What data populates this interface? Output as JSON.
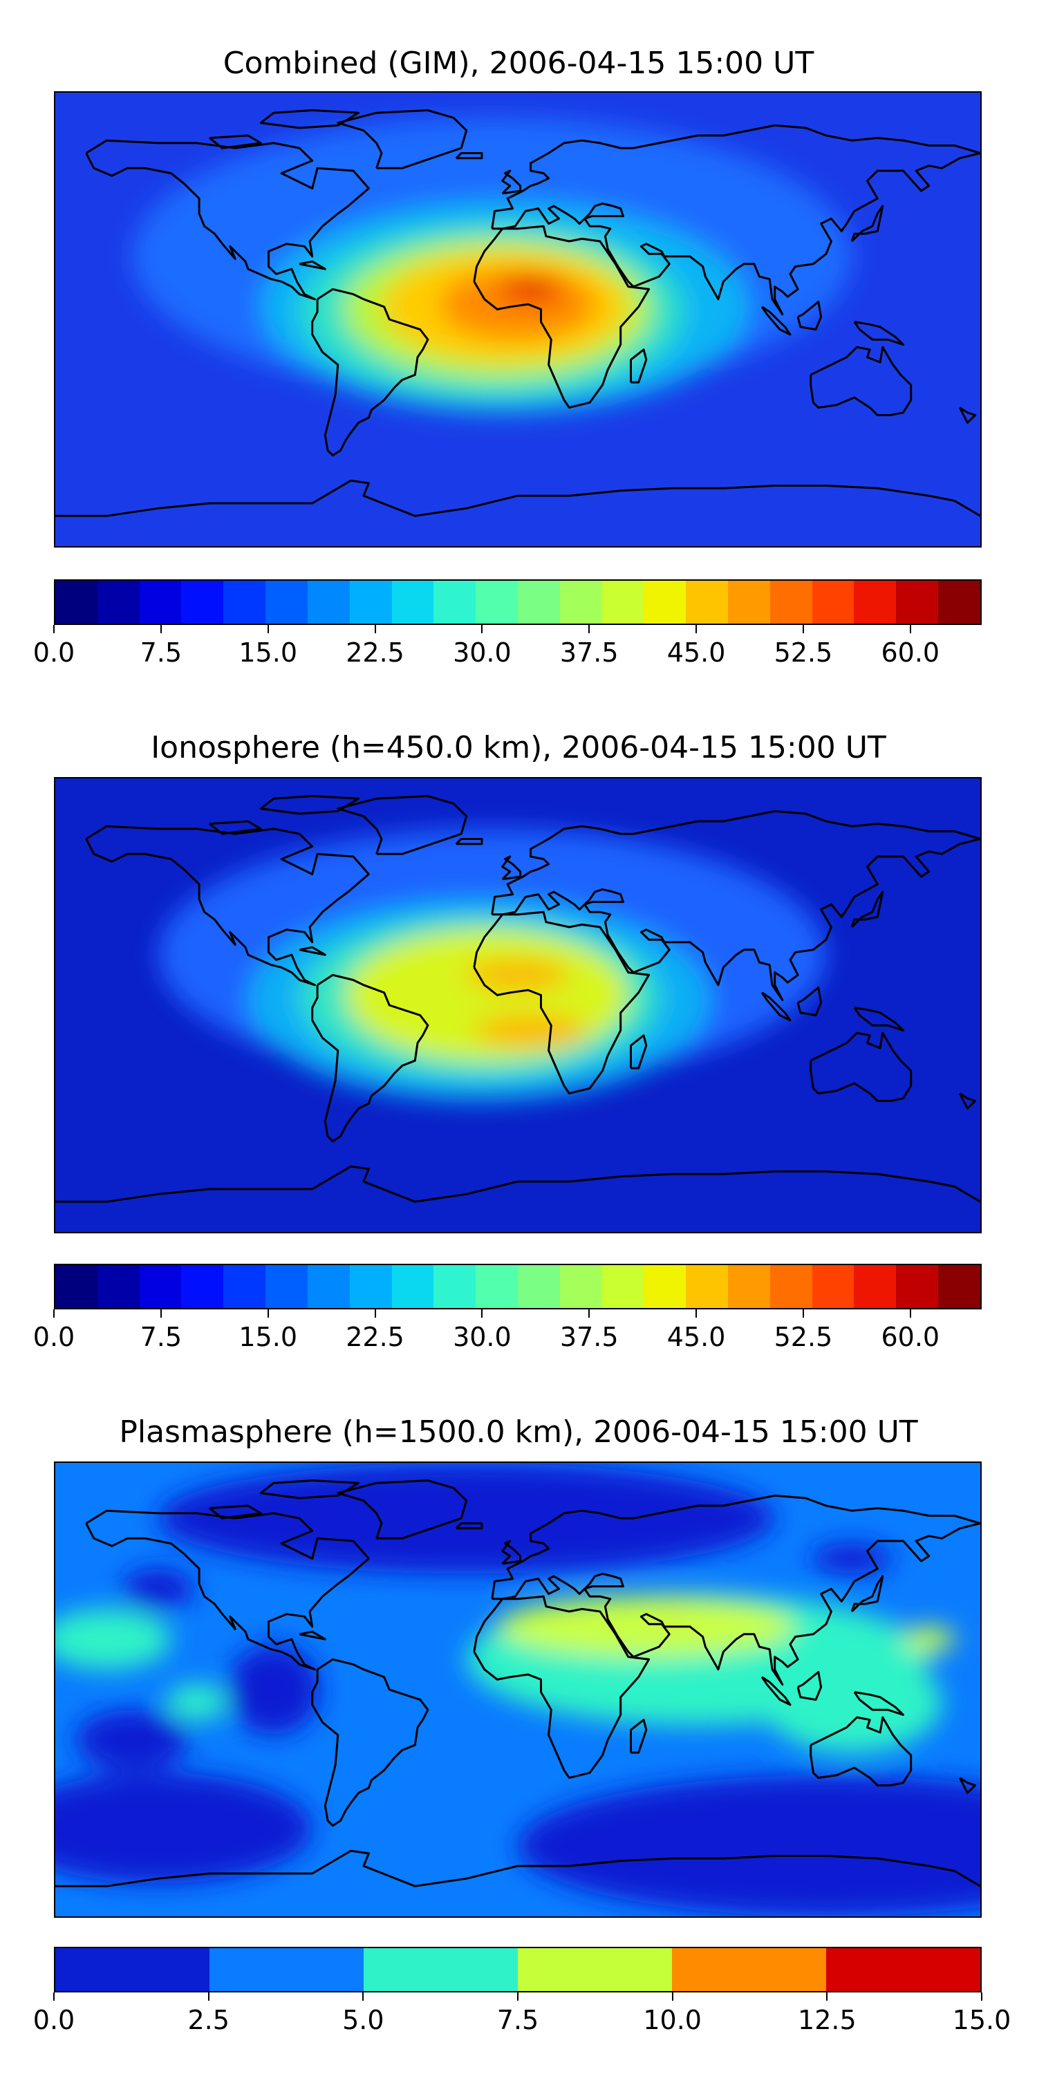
{
  "panels": [
    {
      "title": "Combined (GIM), 2006-04-15 15:00 UT",
      "background": "#1a3ce8",
      "blobs": [
        {
          "lon": -10,
          "lat": 25,
          "rx": 140,
          "ry": 55,
          "color": "#1e6cff"
        },
        {
          "lon": -5,
          "lat": 5,
          "rx": 95,
          "ry": 42,
          "color": "#09b3f5"
        },
        {
          "lon": -10,
          "lat": 3,
          "rx": 75,
          "ry": 35,
          "color": "#2be0c8"
        },
        {
          "lon": -8,
          "lat": 4,
          "rx": 60,
          "ry": 28,
          "color": "#b8f53a"
        },
        {
          "lon": -5,
          "lat": 5,
          "rx": 48,
          "ry": 22,
          "color": "#ffcc00"
        },
        {
          "lon": 0,
          "lat": 6,
          "rx": 30,
          "ry": 14,
          "color": "#ff8a00"
        },
        {
          "lon": 5,
          "lat": 12,
          "rx": 12,
          "ry": 5,
          "color": "#e82a00"
        }
      ],
      "colorbar": {
        "colors": [
          "#00007f",
          "#0000a8",
          "#0000e0",
          "#0010ff",
          "#0038ff",
          "#0060ff",
          "#0088ff",
          "#00b0ff",
          "#0ad8f0",
          "#2ff4d0",
          "#52ffac",
          "#7aff84",
          "#a4ff5a",
          "#caff30",
          "#f0f400",
          "#ffc400",
          "#ff9a00",
          "#ff6e00",
          "#ff4200",
          "#ee1600",
          "#c00000",
          "#8a0000"
        ],
        "range": [
          0,
          65.0
        ],
        "ticks": [
          "0.0",
          "7.5",
          "15.0",
          "22.5",
          "30.0",
          "37.5",
          "45.0",
          "52.5",
          "60.0"
        ]
      }
    },
    {
      "title": "Ionosphere  (h=450.0 km), 2006-04-15 15:00 UT",
      "background": "#0a20c8",
      "blobs": [
        {
          "lon": -10,
          "lat": 20,
          "rx": 130,
          "ry": 50,
          "color": "#1e64ff"
        },
        {
          "lon": -15,
          "lat": 2,
          "rx": 90,
          "ry": 40,
          "color": "#0aaef5"
        },
        {
          "lon": -15,
          "lat": 3,
          "rx": 70,
          "ry": 32,
          "color": "#30e4c4"
        },
        {
          "lon": -12,
          "lat": 4,
          "rx": 55,
          "ry": 26,
          "color": "#d8f51a"
        },
        {
          "lon": 0,
          "lat": 12,
          "rx": 20,
          "ry": 6,
          "color": "#ffb400"
        },
        {
          "lon": 5,
          "lat": -10,
          "rx": 22,
          "ry": 6,
          "color": "#ffb400"
        }
      ],
      "colorbar": {
        "colors": [
          "#00007f",
          "#0000a8",
          "#0000e0",
          "#0010ff",
          "#0038ff",
          "#0060ff",
          "#0088ff",
          "#00b0ff",
          "#0ad8f0",
          "#2ff4d0",
          "#52ffac",
          "#7aff84",
          "#a4ff5a",
          "#caff30",
          "#f0f400",
          "#ffc400",
          "#ff9a00",
          "#ff6e00",
          "#ff4200",
          "#ee1600",
          "#c00000",
          "#8a0000"
        ],
        "range": [
          0,
          65.0
        ],
        "ticks": [
          "0.0",
          "7.5",
          "15.0",
          "22.5",
          "30.0",
          "37.5",
          "45.0",
          "52.5",
          "60.0"
        ]
      }
    },
    {
      "title": "Plasmasphere (h=1500.0 km), 2006-04-15 15:00 UT",
      "background": "#0a7cff",
      "blobs": [
        {
          "lon": -20,
          "lat": 68,
          "rx": 120,
          "ry": 22,
          "color": "#0a1ed2"
        },
        {
          "lon": 120,
          "lat": -62,
          "rx": 120,
          "ry": 28,
          "color": "#0a1ed2"
        },
        {
          "lon": -140,
          "lat": -55,
          "rx": 60,
          "ry": 22,
          "color": "#0a1ed2"
        },
        {
          "lon": -95,
          "lat": 0,
          "rx": 18,
          "ry": 18,
          "color": "#0a1ed2"
        },
        {
          "lon": -150,
          "lat": -20,
          "rx": 22,
          "ry": 12,
          "color": "#0a1ed2"
        },
        {
          "lon": 130,
          "lat": 52,
          "rx": 16,
          "ry": 6,
          "color": "#0a1ed2"
        },
        {
          "lon": -140,
          "lat": 40,
          "rx": 14,
          "ry": 8,
          "color": "#0a1ed2"
        },
        {
          "lon": 70,
          "lat": 12,
          "rx": 90,
          "ry": 26,
          "color": "#2ff2c8"
        },
        {
          "lon": -160,
          "lat": 20,
          "rx": 25,
          "ry": 12,
          "color": "#2ff2c8"
        },
        {
          "lon": -125,
          "lat": -5,
          "rx": 12,
          "ry": 7,
          "color": "#2ff2c8"
        },
        {
          "lon": 130,
          "lat": -5,
          "rx": 35,
          "ry": 20,
          "color": "#2ff2c8"
        },
        {
          "lon": 50,
          "lat": 25,
          "rx": 58,
          "ry": 12,
          "color": "#c9ff44"
        },
        {
          "lon": 160,
          "lat": 20,
          "rx": 10,
          "ry": 5,
          "color": "#c9ff44"
        },
        {
          "lon": 60,
          "lat": 27,
          "rx": 2.5,
          "ry": 0.8,
          "color": "#ff4020"
        }
      ],
      "colorbar": {
        "colors": [
          "#0a1ed2",
          "#0a7cff",
          "#2ff2c8",
          "#c4ff3a",
          "#ff8c00",
          "#d60000"
        ],
        "range": [
          0,
          15.0
        ],
        "ticks": [
          "0.0",
          "2.5",
          "5.0",
          "7.5",
          "10.0",
          "12.5",
          "15.0"
        ]
      }
    }
  ]
}
